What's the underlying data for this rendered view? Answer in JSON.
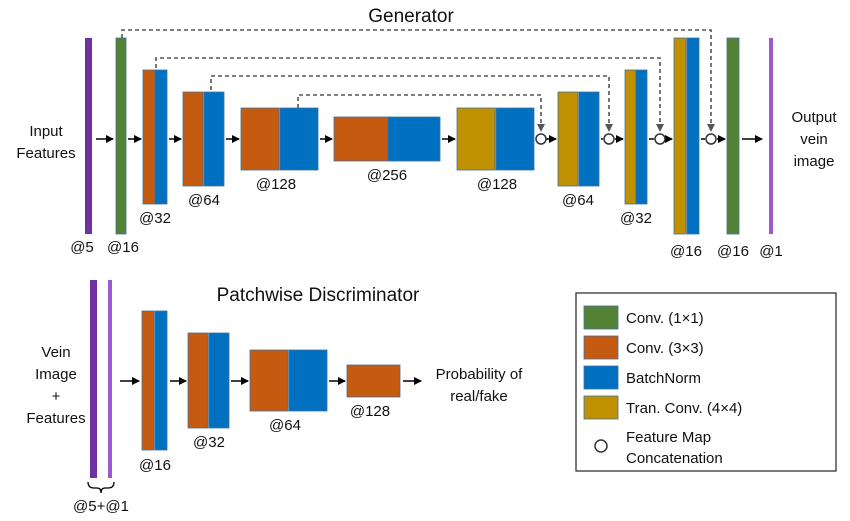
{
  "generator": {
    "title": "Generator",
    "input_label": [
      "Input",
      "Features"
    ],
    "output_label": [
      "Output",
      "vein",
      "image"
    ],
    "channels": {
      "input": "@5",
      "conv1_in": "@16",
      "enc1": "@32",
      "enc2": "@64",
      "enc3": "@128",
      "bottleneck": "@256",
      "dec3": "@128",
      "dec2": "@64",
      "dec1": "@32",
      "dec0": "@16",
      "conv1_out": "@16",
      "output": "@1"
    }
  },
  "discriminator": {
    "title": "Patchwise Discriminator",
    "input_label": [
      "Vein",
      "Image",
      "+",
      "Features"
    ],
    "input_channels": "@5+@1",
    "output_label": [
      "Probability of",
      "real/fake"
    ],
    "channels": {
      "d1": "@16",
      "d2": "@32",
      "d3": "@64",
      "d4": "@128"
    }
  },
  "legend": {
    "items": [
      {
        "label": "Conv. (1×1)",
        "color": "#548235"
      },
      {
        "label": "Conv. (3×3)",
        "color": "#c55a11"
      },
      {
        "label": "BatchNorm",
        "color": "#0070c0"
      },
      {
        "label": "Tran. Conv. (4×4)",
        "color": "#bf9000"
      }
    ],
    "concat_label": [
      "Feature Map",
      "Concatenation"
    ]
  },
  "colors": {
    "input_purple": "#7030a0",
    "output_purple": "#9b59d0",
    "conv1x1": "#548235",
    "conv3x3": "#c55a11",
    "batchnorm": "#0070c0",
    "tranconv": "#bf9000",
    "block_border": "#41719c"
  }
}
